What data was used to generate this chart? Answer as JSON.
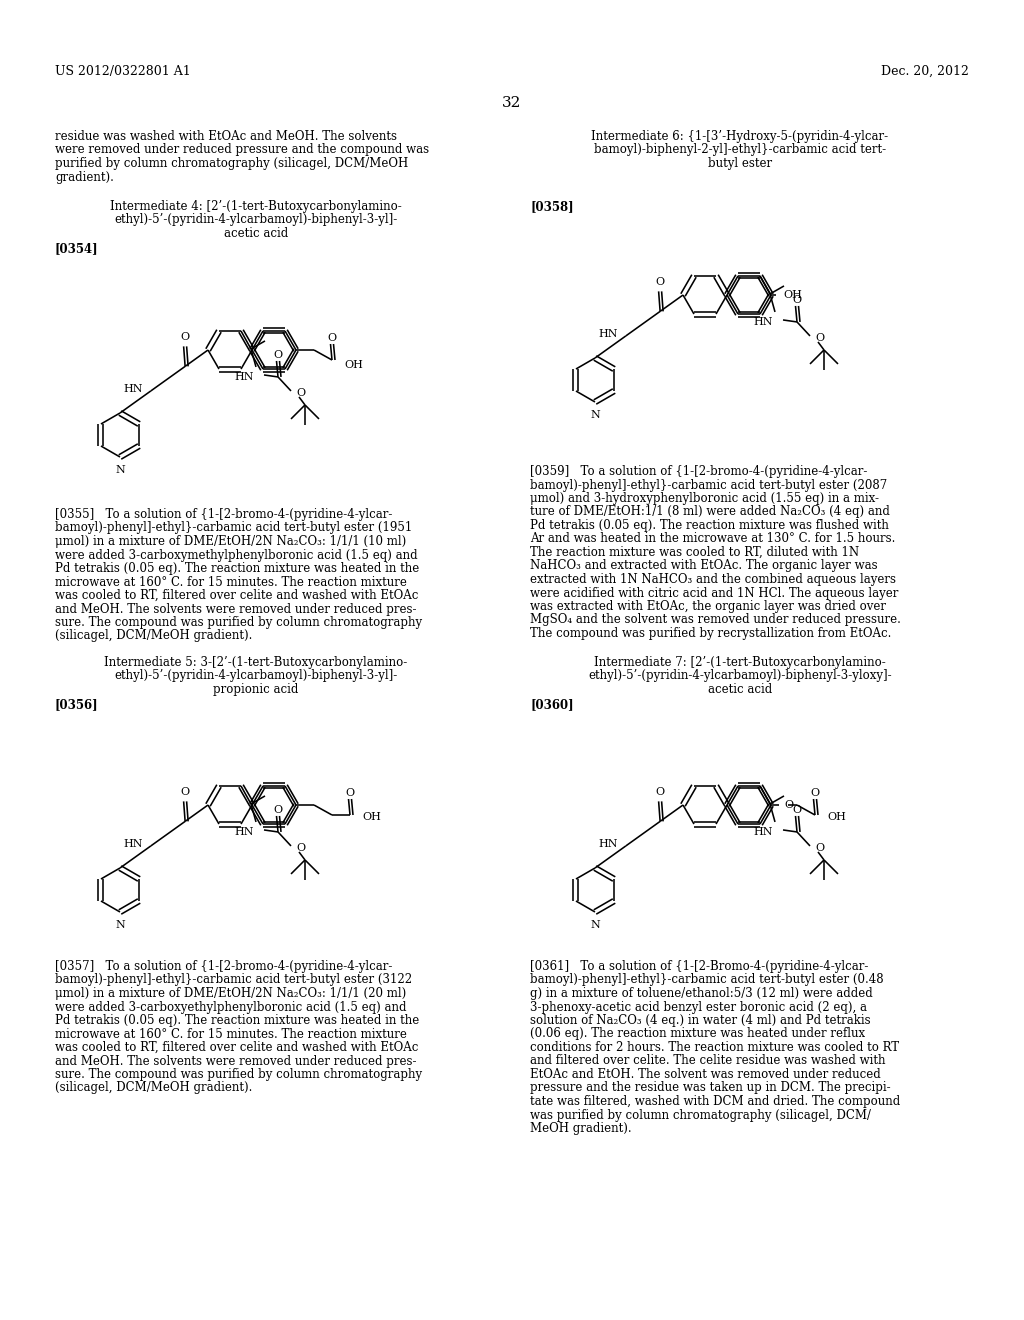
{
  "background_color": "#ffffff",
  "header_left": "US 2012/0322801 A1",
  "header_right": "Dec. 20, 2012",
  "page_number": "32",
  "intro_text": [
    "residue was washed with EtOAc and MeOH. The solvents",
    "were removed under reduced pressure and the compound was",
    "purified by column chromatography (silicagel, DCM/MeOH",
    "gradient)."
  ],
  "int6_title": [
    "Intermediate 6: {1-[3’-Hydroxy-5-(pyridin-4-ylcar-",
    "bamoyl)-biphenyl-2-yl]-ethyl}-carbamic acid tert-",
    "butyl ester"
  ],
  "int4_title": [
    "Intermediate 4: [2’-(1-tert-Butoxycarbonylamino-",
    "ethyl)-5’-(pyridin-4-ylcarbamoyl)-biphenyl-3-yl]-",
    "acetic acid"
  ],
  "ref354": "[0354]",
  "ref358": "[0358]",
  "ref355": [
    "[0355]   To a solution of {1-[2-bromo-4-(pyridine-4-ylcar-",
    "bamoyl)-phenyl]-ethyl}-carbamic acid tert-butyl ester (1951",
    "μmol) in a mixture of DME/EtOH/2N Na₂CO₃: 1/1/1 (10 ml)",
    "were added 3-carboxymethylphenylboronic acid (1.5 eq) and",
    "Pd tetrakis (0.05 eq). The reaction mixture was heated in the",
    "microwave at 160° C. for 15 minutes. The reaction mixture",
    "was cooled to RT, filtered over celite and washed with EtOAc",
    "and MeOH. The solvents were removed under reduced pres-",
    "sure. The compound was purified by column chromatography",
    "(silicagel, DCM/MeOH gradient)."
  ],
  "ref359": [
    "[0359]   To a solution of {1-[2-bromo-4-(pyridine-4-ylcar-",
    "bamoyl)-phenyl]-ethyl}-carbamic acid tert-butyl ester (2087",
    "μmol) and 3-hydroxyphenylboronic acid (1.55 eq) in a mix-",
    "ture of DME/EtOH:1/1 (8 ml) were added Na₂CO₃ (4 eq) and",
    "Pd tetrakis (0.05 eq). The reaction mixture was flushed with",
    "Ar and was heated in the microwave at 130° C. for 1.5 hours.",
    "The reaction mixture was cooled to RT, diluted with 1N",
    "NaHCO₃ and extracted with EtOAc. The organic layer was",
    "extracted with 1N NaHCO₃ and the combined aqueous layers",
    "were acidified with citric acid and 1N HCl. The aqueous layer",
    "was extracted with EtOAc, the organic layer was dried over",
    "MgSO₄ and the solvent was removed under reduced pressure.",
    "The compound was purified by recrystallization from EtOAc."
  ],
  "int5_title": [
    "Intermediate 5: 3-[2’-(1-tert-Butoxycarbonylamino-",
    "ethyl)-5’-(pyridin-4-ylcarbamoyl)-biphenyl-3-yl]-",
    "propionic acid"
  ],
  "int7_title": [
    "Intermediate 7: [2’-(1-tert-Butoxycarbonylamino-",
    "ethyl)-5’-(pyridin-4-ylcarbamoyl)-biphenyl-3-yloxy]-",
    "acetic acid"
  ],
  "ref356": "[0356]",
  "ref360": "[0360]",
  "ref357": [
    "[0357]   To a solution of {1-[2-bromo-4-(pyridine-4-ylcar-",
    "bamoyl)-phenyl]-ethyl}-carbamic acid tert-butyl ester (3122",
    "μmol) in a mixture of DME/EtOH/2N Na₂CO₃: 1/1/1 (20 ml)",
    "were added 3-carboxyethylphenylboronic acid (1.5 eq) and",
    "Pd tetrakis (0.05 eq). The reaction mixture was heated in the",
    "microwave at 160° C. for 15 minutes. The reaction mixture",
    "was cooled to RT, filtered over celite and washed with EtOAc",
    "and MeOH. The solvents were removed under reduced pres-",
    "sure. The compound was purified by column chromatography",
    "(silicagel, DCM/MeOH gradient)."
  ],
  "ref361": [
    "[0361]   To a solution of {1-[2-Bromo-4-(pyridine-4-ylcar-",
    "bamoyl)-phenyl]-ethyl}-carbamic acid tert-butyl ester (0.48",
    "g) in a mixture of toluene/ethanol:5/3 (12 ml) were added",
    "3-phenoxy-acetic acid benzyl ester boronic acid (2 eq), a",
    "solution of Na₂CO₃ (4 eq.) in water (4 ml) and Pd tetrakis",
    "(0.06 eq). The reaction mixture was heated under reflux",
    "conditions for 2 hours. The reaction mixture was cooled to RT",
    "and filtered over celite. The celite residue was washed with",
    "EtOAc and EtOH. The solvent was removed under reduced",
    "pressure and the residue was taken up in DCM. The precipi-",
    "tate was filtered, washed with DCM and dried. The compound",
    "was purified by column chromatography (silicagel, DCM/",
    "MeOH gradient)."
  ]
}
